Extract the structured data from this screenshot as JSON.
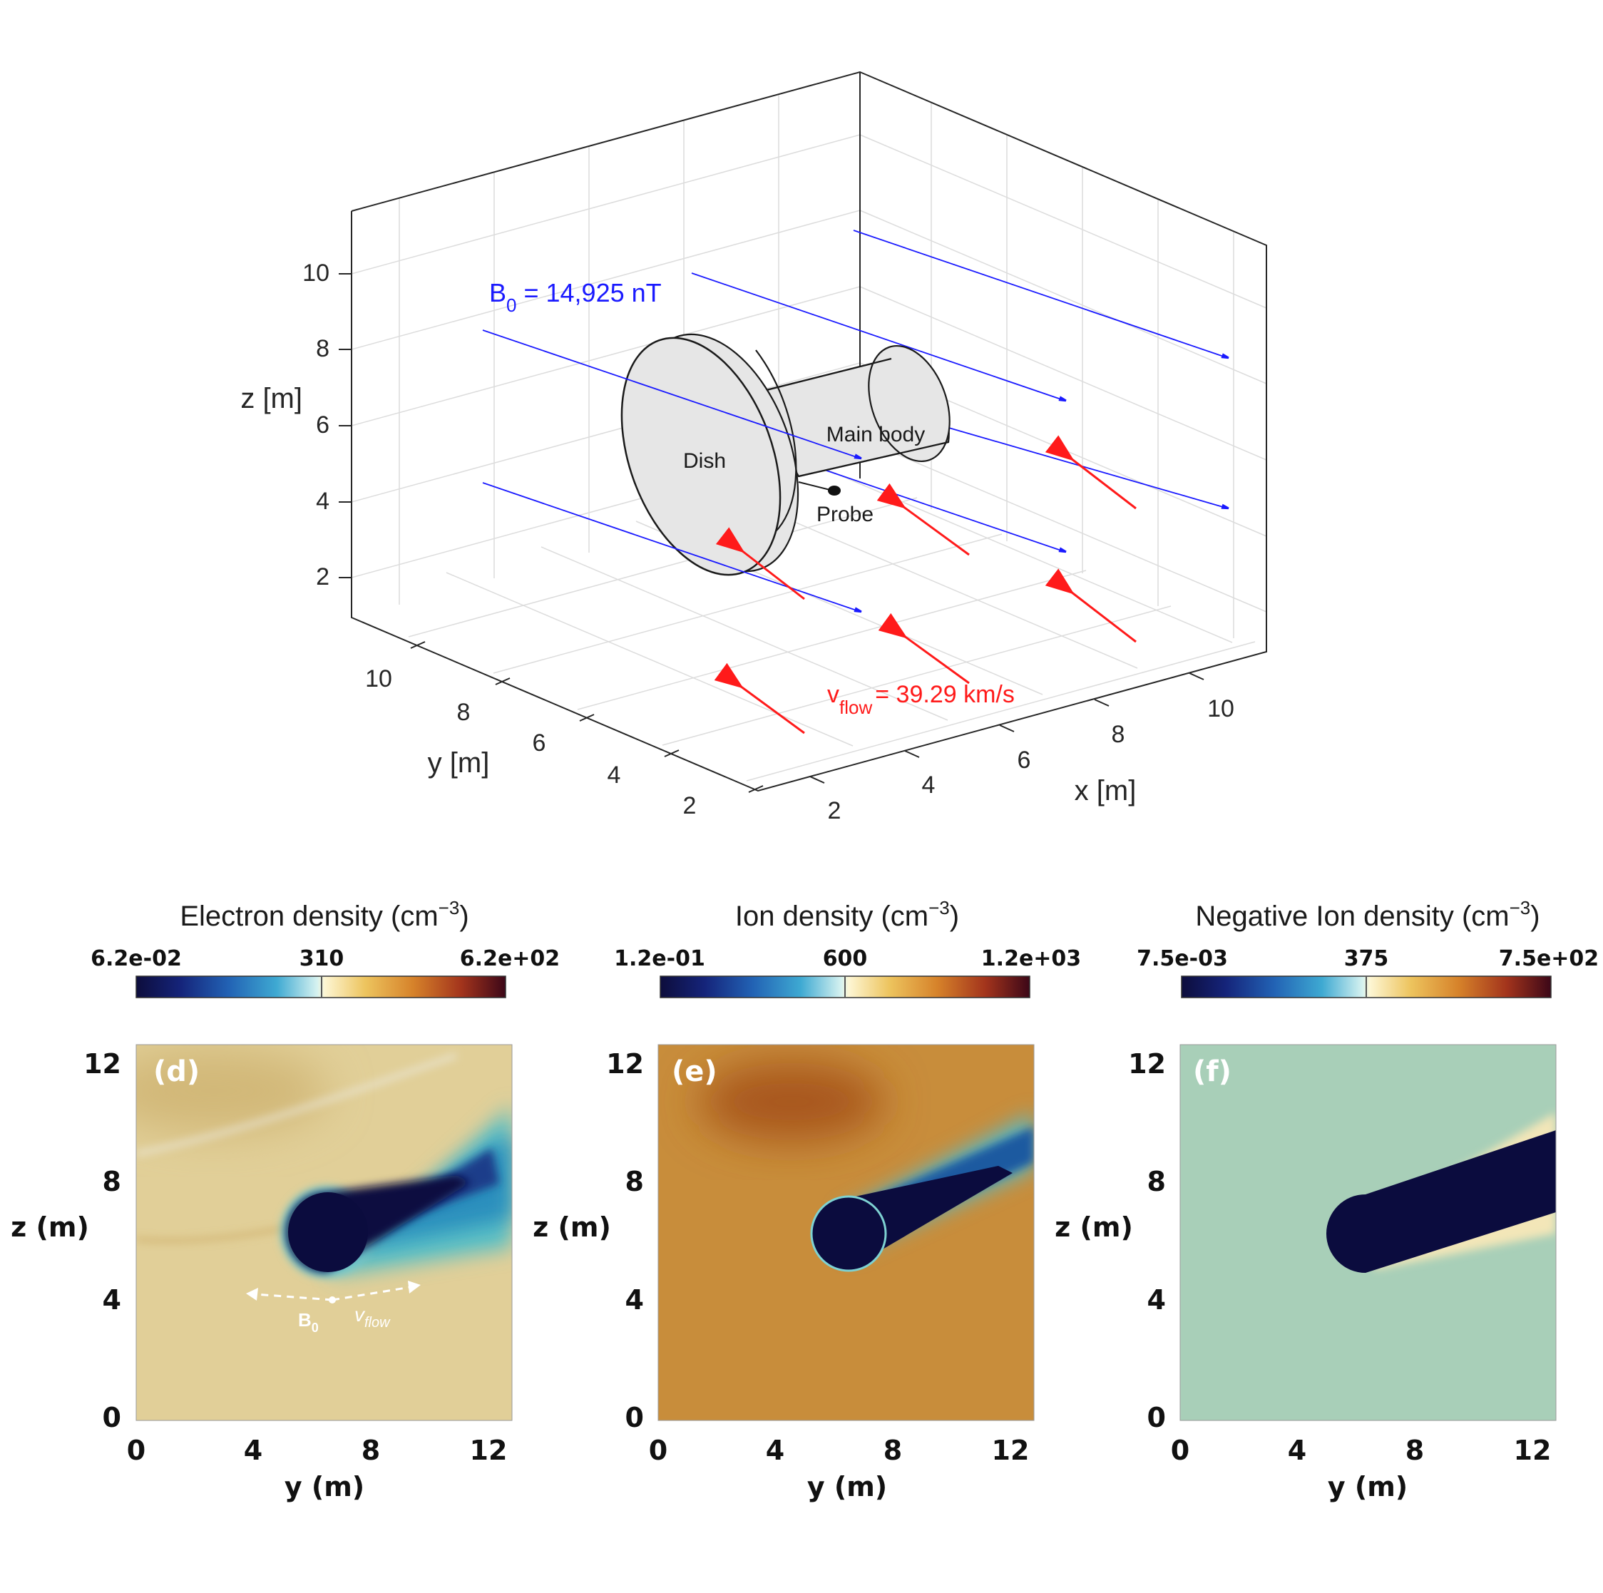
{
  "scene": {
    "z_axis_label": "z [m]",
    "y_axis_label": "y [m]",
    "x_axis_label": "x [m]",
    "z_ticks": [
      "10",
      "8",
      "6",
      "4",
      "2"
    ],
    "y_ticks": [
      "10",
      "8",
      "6",
      "4",
      "2"
    ],
    "x_ticks": [
      "2",
      "4",
      "6",
      "8",
      "10"
    ],
    "b0_label": "B",
    "b0_sub": "0",
    "b0_value": " = 14,925 nT",
    "vflow_label": "v",
    "vflow_sub": "flow",
    "vflow_value": "= 39.29 km/s",
    "dish_label": "Dish",
    "body_label": "Main body",
    "probe_label": "Probe",
    "colors": {
      "field": "#1a1aff",
      "flow": "#ff1a1a",
      "body": "#e6e6e6"
    }
  },
  "chart_data": [
    {
      "type": "heatmap",
      "panel_label": "(d)",
      "title": "Electron density (cm",
      "title_exp": "−3",
      "title_end": ")",
      "colorbar_ticks": [
        "6.2e-02",
        "310",
        "6.2e+02"
      ],
      "xlabel": "y (m)",
      "ylabel": "z (m)",
      "x_ticks": [
        "0",
        "4",
        "8",
        "12"
      ],
      "y_ticks": [
        "12",
        "8",
        "4",
        "0"
      ],
      "xlim": [
        0,
        12.8
      ],
      "ylim": [
        0,
        12.8
      ],
      "background": "#e1cf98",
      "annotations": {
        "b0": "B",
        "b0_sub": "0",
        "vflow": "v",
        "vflow_sub": "flow"
      }
    },
    {
      "type": "heatmap",
      "panel_label": "(e)",
      "title": "Ion density (cm",
      "title_exp": "−3",
      "title_end": ")",
      "colorbar_ticks": [
        "1.2e-01",
        "600",
        "1.2e+03"
      ],
      "xlabel": "y (m)",
      "ylabel": "z (m)",
      "x_ticks": [
        "0",
        "4",
        "8",
        "12"
      ],
      "y_ticks": [
        "12",
        "8",
        "4",
        "0"
      ],
      "xlim": [
        0,
        12.8
      ],
      "ylim": [
        0,
        12.8
      ],
      "background": "#c88d3b"
    },
    {
      "type": "heatmap",
      "panel_label": "(f)",
      "title": "Negative Ion density (cm",
      "title_exp": "−3",
      "title_end": ")",
      "colorbar_ticks": [
        "7.5e-03",
        "375",
        "7.5e+02"
      ],
      "xlabel": "y (m)",
      "ylabel": "z (m)",
      "x_ticks": [
        "0",
        "4",
        "8",
        "12"
      ],
      "y_ticks": [
        "12",
        "8",
        "4",
        "0"
      ],
      "xlim": [
        0,
        12.8
      ],
      "ylim": [
        0,
        12.8
      ],
      "background": "#a8cfb8"
    }
  ]
}
